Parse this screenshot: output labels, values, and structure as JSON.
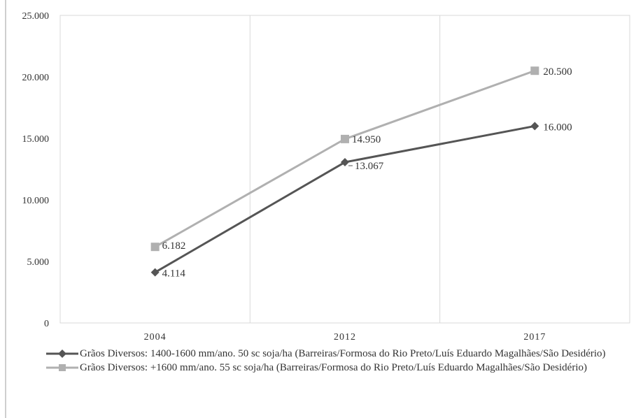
{
  "chart_data": {
    "type": "line",
    "title": "",
    "xlabel": "",
    "ylabel": "",
    "categories": [
      "2004",
      "2012",
      "2017"
    ],
    "ylim": [
      0,
      25000
    ],
    "yticks": [
      0,
      5000,
      10000,
      15000,
      20000,
      25000
    ],
    "ytick_labels": [
      "0",
      "5.000",
      "10.000",
      "15.000",
      "20.000",
      "25.000"
    ],
    "grid": "vertical",
    "legend_position": "bottom",
    "series": [
      {
        "name": "Grãos Diversos: 1400-1600 mm/ano. 50 sc soja/ha (Barreiras/Formosa do Rio Preto/Luís Eduardo Magalhães/São Desidério)",
        "values": [
          4114,
          13067,
          16000
        ],
        "labels": [
          "4.114",
          "13.067",
          "16.000"
        ],
        "color": "#555555",
        "marker": "diamond"
      },
      {
        "name": "Grãos Diversos: +1600 mm/ano. 55 sc soja/ha (Barreiras/Formosa do Rio Preto/Luís Eduardo Magalhães/São Desidério)",
        "values": [
          6182,
          14950,
          20500
        ],
        "labels": [
          "6.182",
          "14.950",
          "20.500"
        ],
        "color": "#b0b0b0",
        "marker": "square"
      }
    ]
  }
}
